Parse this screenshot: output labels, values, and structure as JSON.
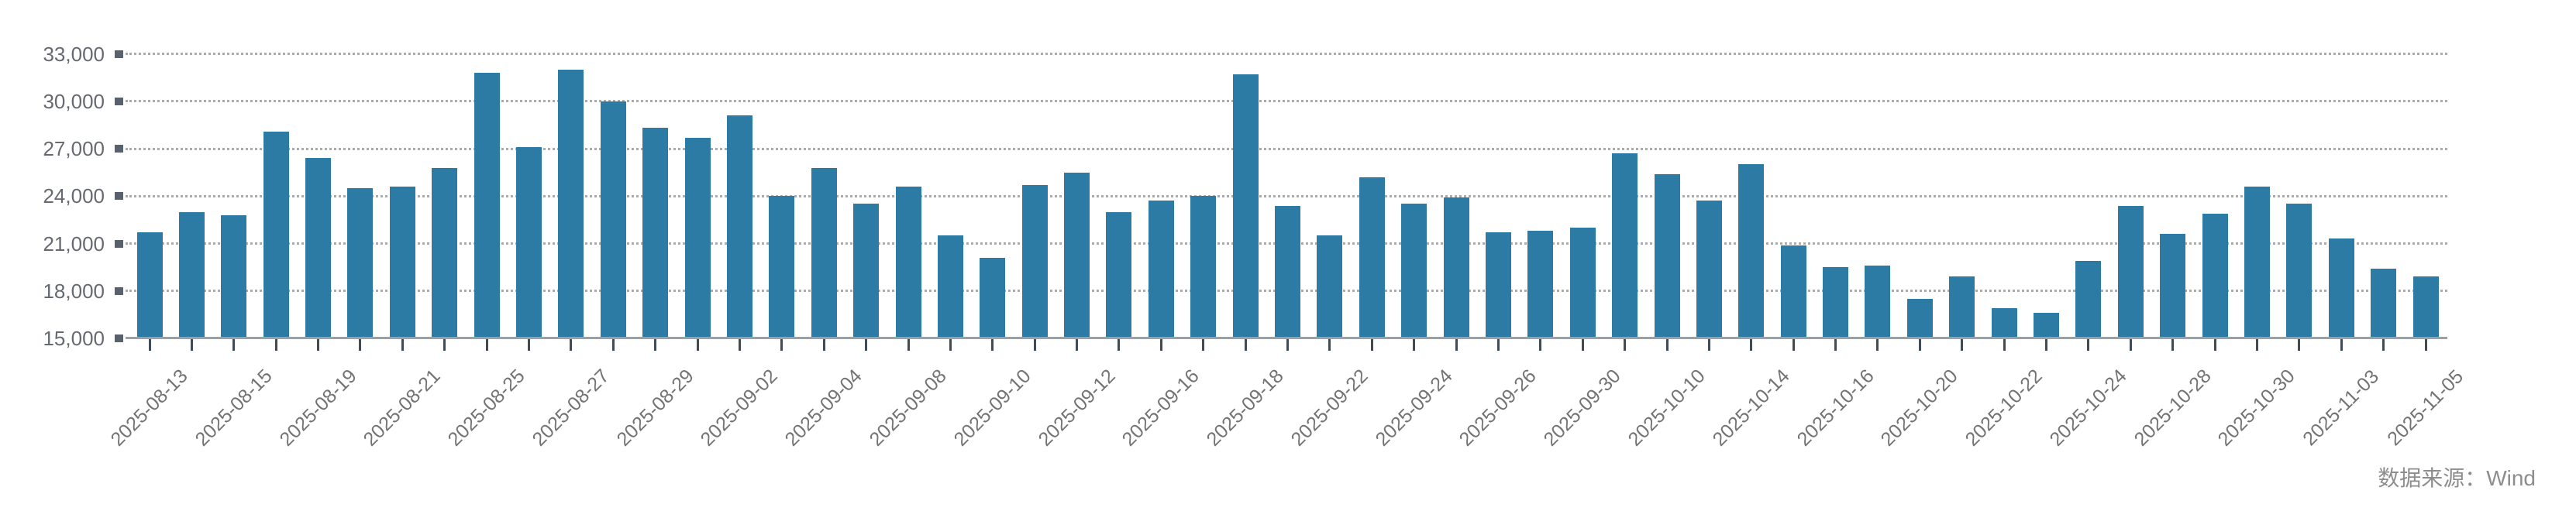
{
  "chart_data": {
    "type": "bar",
    "title": "",
    "xlabel": "",
    "ylabel": "",
    "ylim": [
      15000,
      33000
    ],
    "ytick_step": 3000,
    "y_tick_labels": [
      "15,000",
      "18,000",
      "21,000",
      "24,000",
      "27,000",
      "30,000",
      "33,000"
    ],
    "grid": "horizontal-dotted",
    "legend": "none",
    "x_label_every": 2,
    "bar_color": "#2b7ba5",
    "categories": [
      "2025-08-13",
      "2025-08-14",
      "2025-08-15",
      "2025-08-18",
      "2025-08-19",
      "2025-08-20",
      "2025-08-21",
      "2025-08-22",
      "2025-08-25",
      "2025-08-26",
      "2025-08-27",
      "2025-08-28",
      "2025-08-29",
      "2025-09-01",
      "2025-09-02",
      "2025-09-03",
      "2025-09-04",
      "2025-09-05",
      "2025-09-08",
      "2025-09-09",
      "2025-09-10",
      "2025-09-11",
      "2025-09-12",
      "2025-09-15",
      "2025-09-16",
      "2025-09-17",
      "2025-09-18",
      "2025-09-19",
      "2025-09-22",
      "2025-09-23",
      "2025-09-24",
      "2025-09-25",
      "2025-09-26",
      "2025-09-29",
      "2025-09-30",
      "2025-10-09",
      "2025-10-10",
      "2025-10-13",
      "2025-10-14",
      "2025-10-15",
      "2025-10-16",
      "2025-10-17",
      "2025-10-20",
      "2025-10-21",
      "2025-10-22",
      "2025-10-23",
      "2025-10-24",
      "2025-10-27",
      "2025-10-28",
      "2025-10-29",
      "2025-10-30",
      "2025-10-31",
      "2025-11-03",
      "2025-11-04",
      "2025-11-05"
    ],
    "values": [
      21700,
      23000,
      22800,
      28100,
      26400,
      24500,
      24600,
      25800,
      31800,
      27100,
      32000,
      30000,
      28300,
      27700,
      29100,
      24000,
      25800,
      23500,
      24600,
      21500,
      20100,
      24700,
      25500,
      23000,
      23700,
      24000,
      31700,
      23400,
      21500,
      25200,
      23500,
      23900,
      21700,
      21800,
      22000,
      26700,
      25400,
      23700,
      26000,
      20900,
      19500,
      19600,
      17500,
      18900,
      16900,
      16600,
      19900,
      23400,
      21600,
      22900,
      24600,
      23500,
      21300,
      19400,
      18900
    ]
  },
  "source": {
    "label": "数据来源：Wind"
  }
}
